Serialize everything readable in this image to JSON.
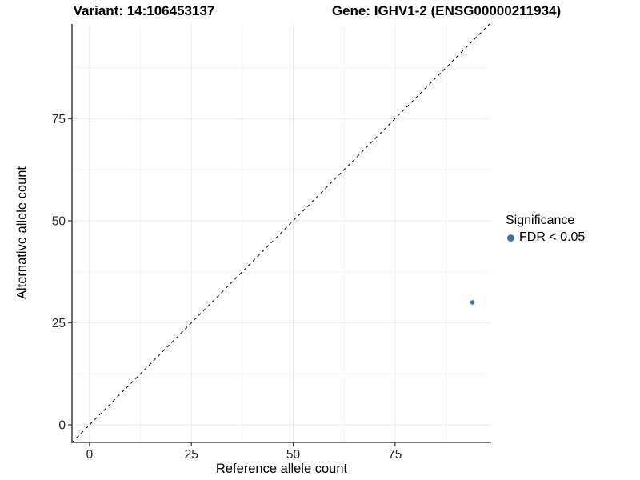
{
  "chart_data": {
    "type": "scatter",
    "titles": {
      "left": "Variant: 14:106453137",
      "right": "Gene: IGHV1-2 (ENSG00000211934)"
    },
    "xlabel": "Reference allele count",
    "ylabel": "Alternative allele count",
    "xlim": [
      -4.3,
      98.6
    ],
    "ylim": [
      -4.3,
      98.2
    ],
    "xticks": [
      0,
      25,
      50,
      75
    ],
    "yticks": [
      0,
      25,
      50,
      75
    ],
    "minor_grid_step": 12.5,
    "grid": true,
    "identity_line": {
      "slope": 1,
      "intercept": 0,
      "style": "dashed"
    },
    "points": [
      {
        "x": 94,
        "y": 30,
        "series": "FDR < 0.05"
      }
    ],
    "point_radius": 2.8,
    "legend": {
      "title": "Significance",
      "position": "right",
      "items": [
        {
          "label": "FDR < 0.05",
          "color": "#4473aa"
        }
      ]
    },
    "style": {
      "point_color": "#4473aa",
      "axis_line_color": "#4a4a4a",
      "tick_color": "#333333",
      "tick_label_color": "#262626",
      "grid_major_color": "#ebebeb",
      "grid_minor_color": "#f5f5f5",
      "identity_line_color": "#000000",
      "background": "#ffffff"
    }
  }
}
